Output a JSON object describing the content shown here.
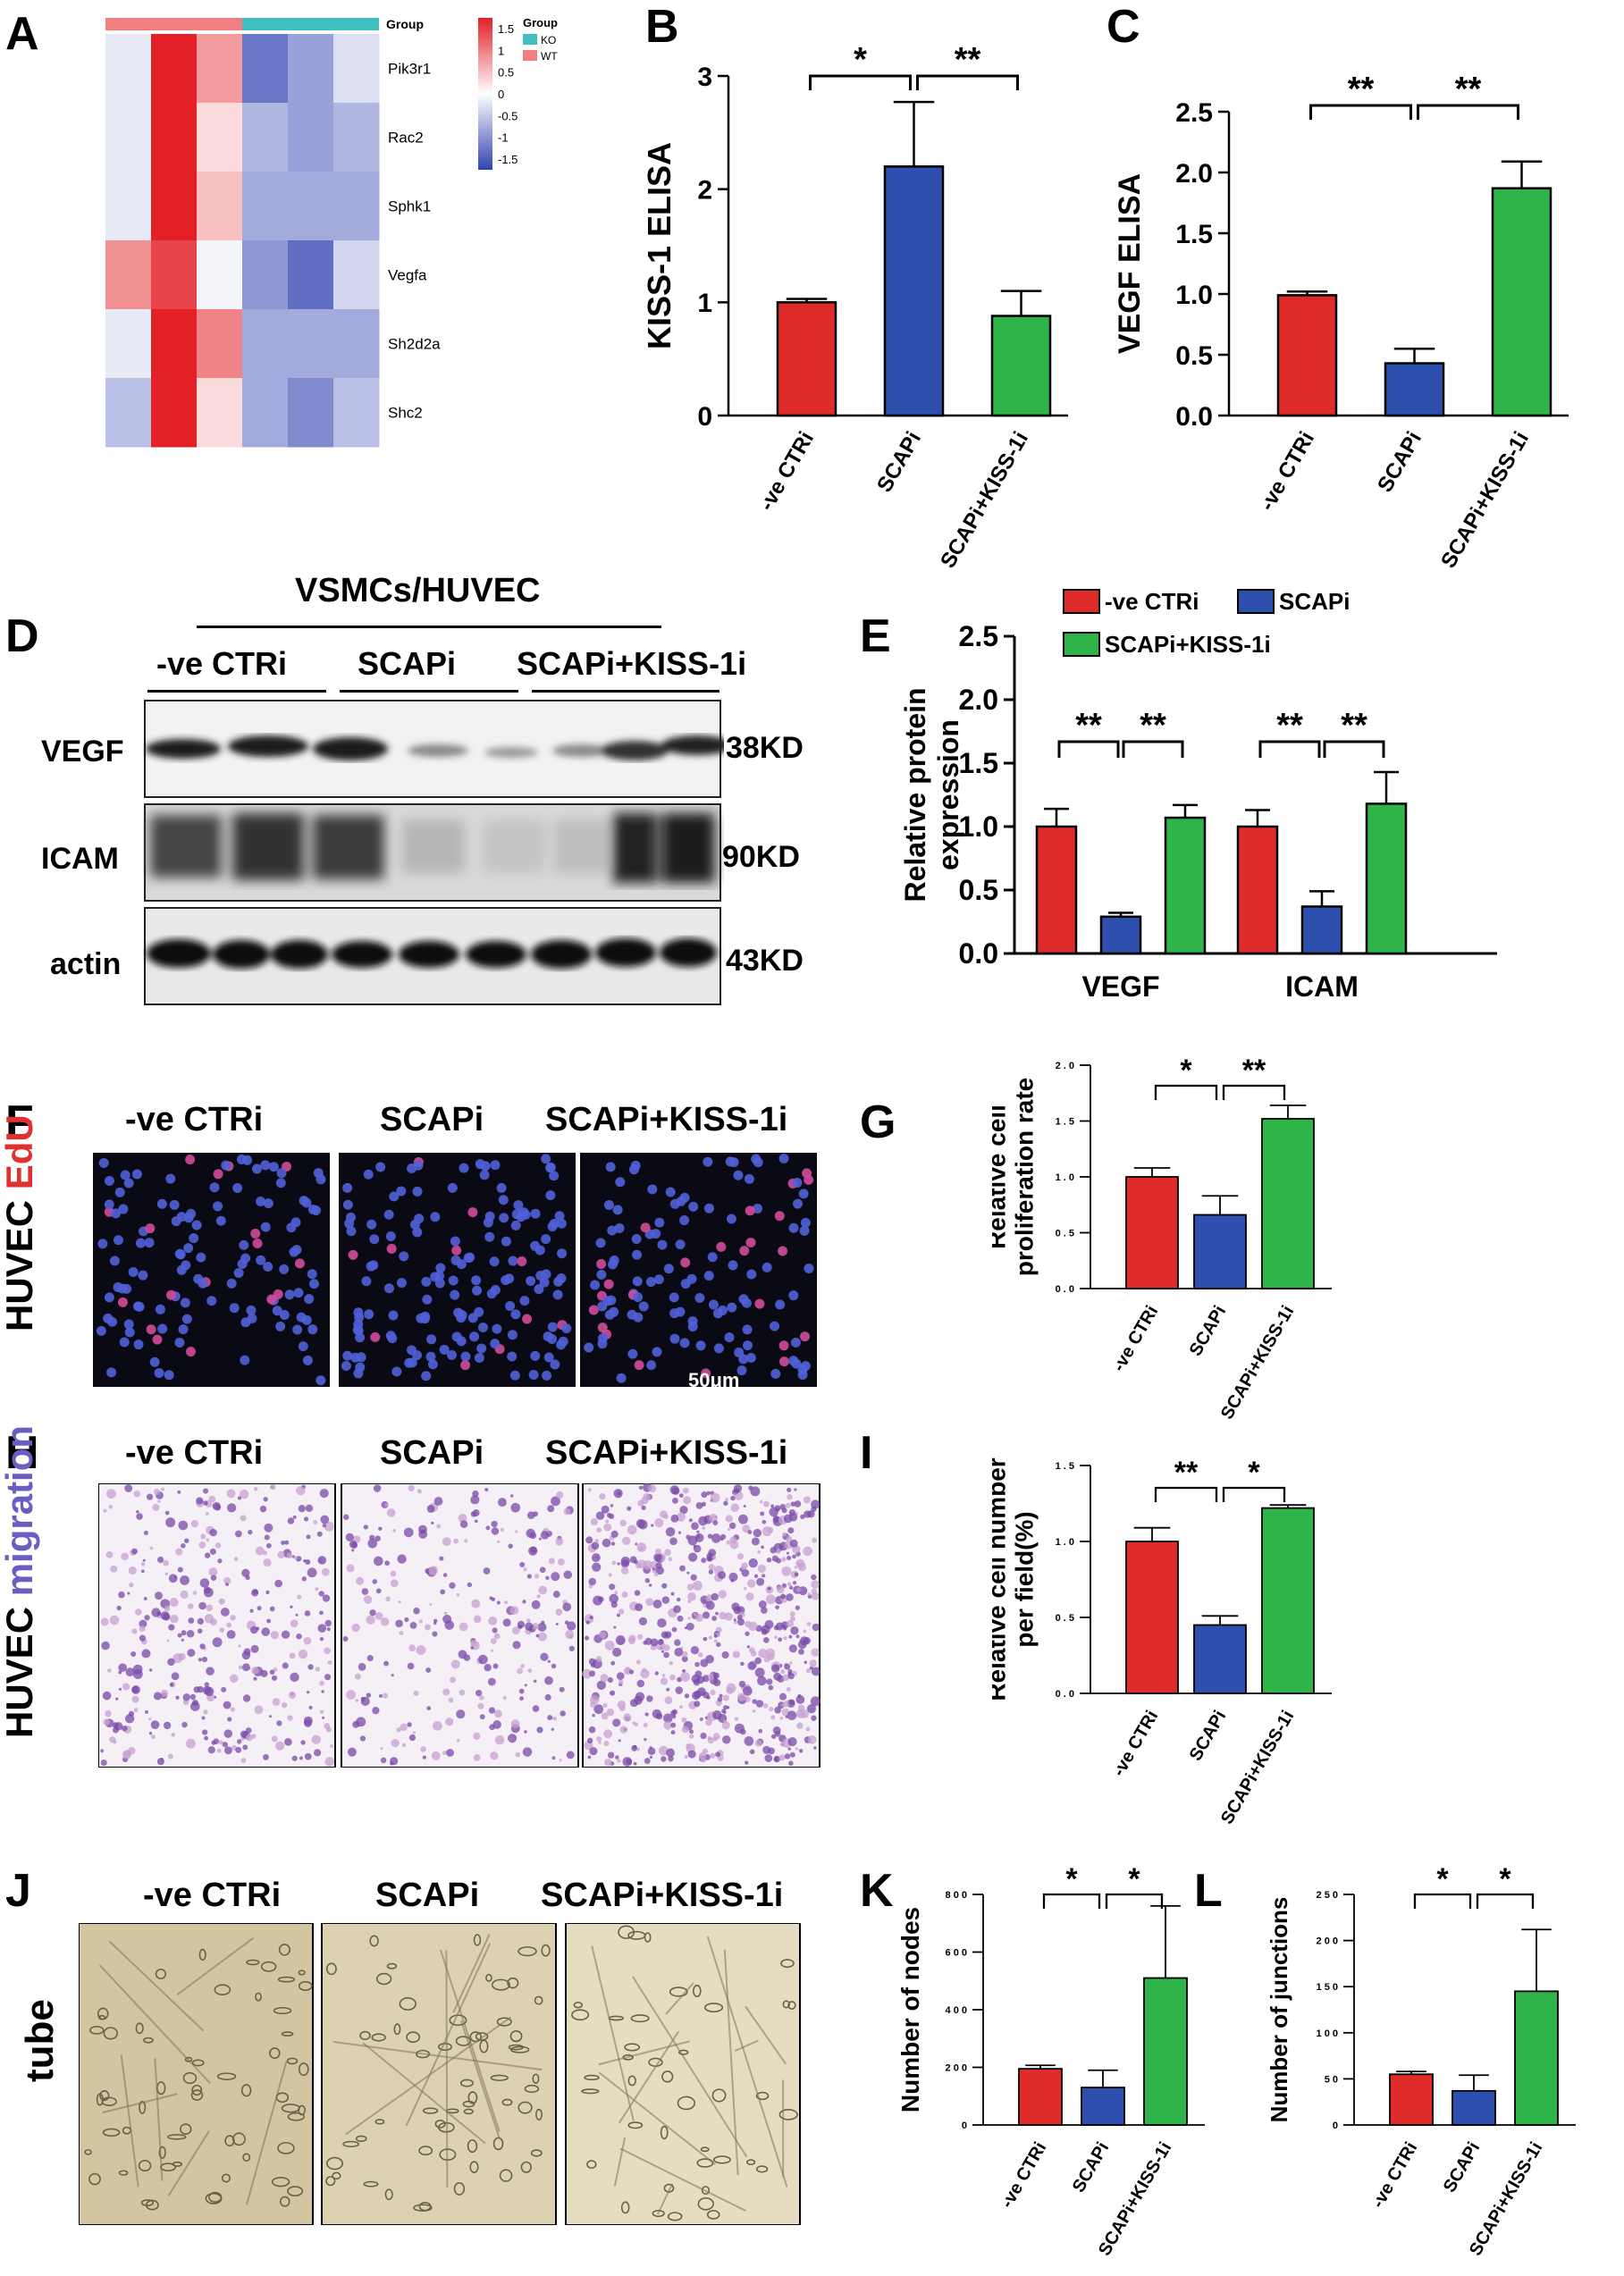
{
  "panels": {
    "A": "A",
    "B": "B",
    "C": "C",
    "D": "D",
    "E": "E",
    "F": "F",
    "G": "G",
    "H": "H",
    "I": "I",
    "J": "J",
    "K": "K",
    "L": "L"
  },
  "groups": [
    "-ve CTRi",
    "SCAPi",
    "SCAPi+KISS-1i"
  ],
  "colors": {
    "red": "#e02b2b",
    "blue": "#2f4fae",
    "green": "#2fb44a",
    "ko": "#3fbfbf",
    "wt": "#f08080"
  },
  "heatmap": {
    "group_header": "Group",
    "legend_title": "Group",
    "legend_ko": "KO",
    "legend_wt": "WT",
    "scale_ticks": [
      "1.5",
      "1",
      "0.5",
      "0",
      "-0.5",
      "-1",
      "-1.5"
    ],
    "genes": [
      "Pik3r1",
      "Rac2",
      "Sphk1",
      "Vegfa",
      "Sh2d2a",
      "Shc2"
    ],
    "columns": [
      "WT",
      "WT",
      "WT",
      "KO",
      "KO",
      "KO"
    ],
    "values": [
      [
        -0.2,
        1.8,
        0.8,
        -1.3,
        -0.9,
        -0.3
      ],
      [
        -0.2,
        1.8,
        0.3,
        -0.7,
        -0.9,
        -0.7
      ],
      [
        -0.2,
        1.8,
        0.5,
        -0.8,
        -0.8,
        -0.8
      ],
      [
        0.9,
        1.5,
        -0.1,
        -1.0,
        -1.4,
        -0.4
      ],
      [
        -0.2,
        1.8,
        1.0,
        -0.8,
        -0.8,
        -0.8
      ],
      [
        -0.6,
        1.8,
        0.3,
        -0.8,
        -1.1,
        -0.6
      ]
    ]
  },
  "blot": {
    "header": "VSMCs/HUVEC",
    "rows": [
      "VEGF",
      "ICAM",
      "actin"
    ],
    "sizes": [
      "38KD",
      "90KD",
      "43KD"
    ]
  },
  "micro": {
    "F_side_a": "HUVEC",
    "F_side_b": "EdU",
    "F_scale": "50μm",
    "H_side_a": "HUVEC",
    "H_side_b": "migration",
    "J_side": "tube"
  },
  "chart_data": [
    {
      "id": "B",
      "type": "bar",
      "categories": [
        "-ve CTRi",
        "SCAPi",
        "SCAPi+KISS-1i"
      ],
      "values": [
        1.0,
        2.2,
        0.88
      ],
      "errors": [
        0.03,
        0.57,
        0.22
      ],
      "ylabel": "KISS-1 ELISA",
      "ylim": [
        0,
        3
      ],
      "yticks": [
        "0",
        "1",
        "2",
        "3"
      ],
      "sig": [
        "*",
        "**"
      ]
    },
    {
      "id": "C",
      "type": "bar",
      "categories": [
        "-ve CTRi",
        "SCAPi",
        "SCAPi+KISS-1i"
      ],
      "values": [
        0.99,
        0.43,
        1.87
      ],
      "errors": [
        0.03,
        0.12,
        0.22
      ],
      "ylabel": "VEGF ELISA",
      "ylim": [
        0,
        2.5
      ],
      "yticks": [
        "0.0",
        "0.5",
        "1.0",
        "1.5",
        "2.0",
        "2.5"
      ],
      "sig": [
        "**",
        "**"
      ]
    },
    {
      "id": "E",
      "type": "bar",
      "categories": [
        "VEGF",
        "ICAM"
      ],
      "series": [
        {
          "name": "-ve CTRi",
          "values": [
            1.0,
            1.0
          ],
          "errors": [
            0.14,
            0.13
          ]
        },
        {
          "name": "SCAPi",
          "values": [
            0.29,
            0.37
          ],
          "errors": [
            0.03,
            0.12
          ]
        },
        {
          "name": "SCAPi+KISS-1i",
          "values": [
            1.07,
            1.18
          ],
          "errors": [
            0.1,
            0.25
          ]
        }
      ],
      "ylabel_line1": "Relative protein",
      "ylabel_line2": "expression",
      "ylim": [
        0,
        2.5
      ],
      "yticks": [
        "0.0",
        "0.5",
        "1.0",
        "1.5",
        "2.0",
        "2.5"
      ],
      "sig": [
        [
          "**",
          "**"
        ],
        [
          "**",
          "**"
        ]
      ],
      "legend": "top"
    },
    {
      "id": "G",
      "type": "bar",
      "categories": [
        "-ve CTRi",
        "SCAPi",
        "SCAPi+KISS-1i"
      ],
      "values": [
        1.0,
        0.66,
        1.52
      ],
      "errors": [
        0.08,
        0.17,
        0.12
      ],
      "ylabel_line1": "Relative cell",
      "ylabel_line2": "proliferation rate",
      "ylim": [
        0,
        2
      ],
      "yticks": [
        "0 . 0",
        "0 . 5",
        "1 . 0",
        "1 . 5",
        "2 . 0"
      ],
      "sig": [
        "*",
        "**"
      ]
    },
    {
      "id": "I",
      "type": "bar",
      "categories": [
        "-ve CTRi",
        "SCAPi",
        "SCAPi+KISS-1i"
      ],
      "values": [
        1.0,
        0.45,
        1.22
      ],
      "errors": [
        0.09,
        0.06,
        0.02
      ],
      "ylabel_line1": "Relative cell number",
      "ylabel_line2": "per field(%)",
      "ylim": [
        0,
        1.5
      ],
      "yticks": [
        "0 . 0",
        "0 . 5",
        "1 . 0",
        "1 . 5"
      ],
      "sig": [
        "**",
        "*"
      ]
    },
    {
      "id": "K",
      "type": "bar",
      "categories": [
        "-ve CTRi",
        "SCAPi",
        "SCAPi+KISS-1i"
      ],
      "values": [
        195,
        130,
        510
      ],
      "errors": [
        12,
        60,
        250
      ],
      "ylabel": "Number of nodes",
      "ylim": [
        0,
        800
      ],
      "yticks": [
        "0",
        "2 0 0",
        "4 0 0",
        "6 0 0",
        "8 0 0"
      ],
      "sig": [
        "*",
        "*"
      ]
    },
    {
      "id": "L",
      "type": "bar",
      "categories": [
        "-ve CTRi",
        "SCAPi",
        "SCAPi+KISS-1i"
      ],
      "values": [
        55,
        37,
        145
      ],
      "errors": [
        3,
        17,
        67
      ],
      "ylabel": "Number of junctions",
      "ylim": [
        0,
        250
      ],
      "yticks": [
        "0",
        "5 0",
        "1 0 0",
        "1 5 0",
        "2 0 0",
        "2 5 0"
      ],
      "sig": [
        "*",
        "*"
      ]
    }
  ]
}
